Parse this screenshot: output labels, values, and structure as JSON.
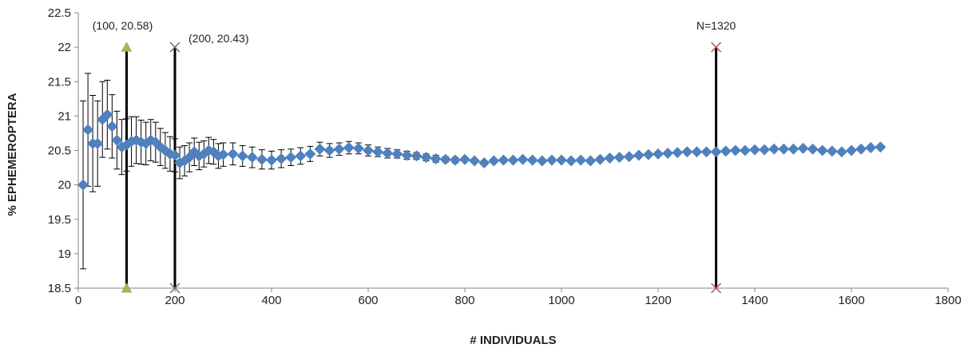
{
  "chart_data": {
    "type": "scatter",
    "title": "",
    "xlabel": "# INDIVIDUALS",
    "ylabel": "% EPHEMEROPTERA",
    "xlim": [
      0,
      1800
    ],
    "ylim": [
      18.5,
      22.5
    ],
    "x_ticks": [
      "0",
      "200",
      "400",
      "600",
      "800",
      "1000",
      "1200",
      "1400",
      "1600",
      "1800"
    ],
    "y_ticks": [
      "18.5",
      "19",
      "19.5",
      "20",
      "20.5",
      "21",
      "21.5",
      "22",
      "22.5"
    ],
    "grid": false,
    "legend": "none",
    "series_color": "#4f81bd",
    "errorbar_color": "#000000",
    "series": {
      "x": [
        10,
        20,
        30,
        40,
        50,
        60,
        70,
        80,
        90,
        100,
        110,
        120,
        130,
        140,
        150,
        160,
        170,
        180,
        190,
        200,
        210,
        220,
        230,
        240,
        250,
        260,
        270,
        280,
        290,
        300,
        320,
        340,
        360,
        380,
        400,
        420,
        440,
        460,
        480,
        500,
        520,
        540,
        560,
        580,
        600,
        620,
        640,
        660,
        680,
        700,
        720,
        740,
        760,
        780,
        800,
        820,
        840,
        860,
        880,
        900,
        920,
        940,
        960,
        980,
        1000,
        1020,
        1040,
        1060,
        1080,
        1100,
        1120,
        1140,
        1160,
        1180,
        1200,
        1220,
        1240,
        1260,
        1280,
        1300,
        1320,
        1340,
        1360,
        1380,
        1400,
        1420,
        1440,
        1460,
        1480,
        1500,
        1520,
        1540,
        1560,
        1580,
        1600,
        1620,
        1640,
        1660
      ],
      "y": [
        20.0,
        20.8,
        20.6,
        20.6,
        20.95,
        21.02,
        20.85,
        20.65,
        20.55,
        20.58,
        20.63,
        20.65,
        20.62,
        20.6,
        20.65,
        20.62,
        20.55,
        20.5,
        20.45,
        20.43,
        20.32,
        20.35,
        20.4,
        20.48,
        20.42,
        20.45,
        20.5,
        20.48,
        20.42,
        20.44,
        20.45,
        20.42,
        20.4,
        20.37,
        20.36,
        20.38,
        20.4,
        20.42,
        20.45,
        20.52,
        20.5,
        20.52,
        20.54,
        20.53,
        20.5,
        20.48,
        20.46,
        20.45,
        20.43,
        20.42,
        20.4,
        20.38,
        20.37,
        20.36,
        20.37,
        20.35,
        20.32,
        20.35,
        20.36,
        20.36,
        20.37,
        20.36,
        20.35,
        20.36,
        20.36,
        20.35,
        20.36,
        20.35,
        20.37,
        20.39,
        20.4,
        20.41,
        20.43,
        20.44,
        20.45,
        20.46,
        20.47,
        20.48,
        20.48,
        20.48,
        20.48,
        20.49,
        20.5,
        20.5,
        20.51,
        20.51,
        20.52,
        20.52,
        20.52,
        20.53,
        20.52,
        20.5,
        20.49,
        20.48,
        20.5,
        20.52,
        20.54,
        20.55
      ],
      "err": [
        1.22,
        0.82,
        0.7,
        0.62,
        0.55,
        0.5,
        0.46,
        0.42,
        0.4,
        0.38,
        0.36,
        0.34,
        0.32,
        0.31,
        0.3,
        0.29,
        0.27,
        0.26,
        0.25,
        0.24,
        0.23,
        0.22,
        0.21,
        0.2,
        0.2,
        0.19,
        0.19,
        0.18,
        0.18,
        0.17,
        0.16,
        0.15,
        0.15,
        0.14,
        0.13,
        0.13,
        0.12,
        0.12,
        0.11,
        0.1,
        0.1,
        0.09,
        0.09,
        0.08,
        0.08,
        0.07,
        0.07,
        0.06,
        0.06,
        0.05,
        0.05,
        0.05,
        0.04,
        0.04,
        0.03,
        0.03,
        0.03,
        0.02,
        0.02,
        0.02,
        0.02,
        0.01,
        0.01,
        0.01,
        0.01,
        0.01,
        0.01,
        0,
        0,
        0,
        0,
        0,
        0,
        0,
        0,
        0,
        0,
        0,
        0,
        0,
        0,
        0,
        0,
        0,
        0,
        0,
        0,
        0,
        0,
        0,
        0,
        0,
        0,
        0,
        0,
        0,
        0,
        0
      ]
    },
    "markers": [
      {
        "x": 100,
        "label": "(100, 20.58)",
        "color": "#9bbb59",
        "symbol": "triangle"
      },
      {
        "x": 200,
        "label": "(200, 20.43)",
        "color": "#8064a2",
        "symbol": "x"
      },
      {
        "x": 1320,
        "label": "N=1320",
        "color": "#c0504d",
        "symbol": "x"
      }
    ]
  }
}
